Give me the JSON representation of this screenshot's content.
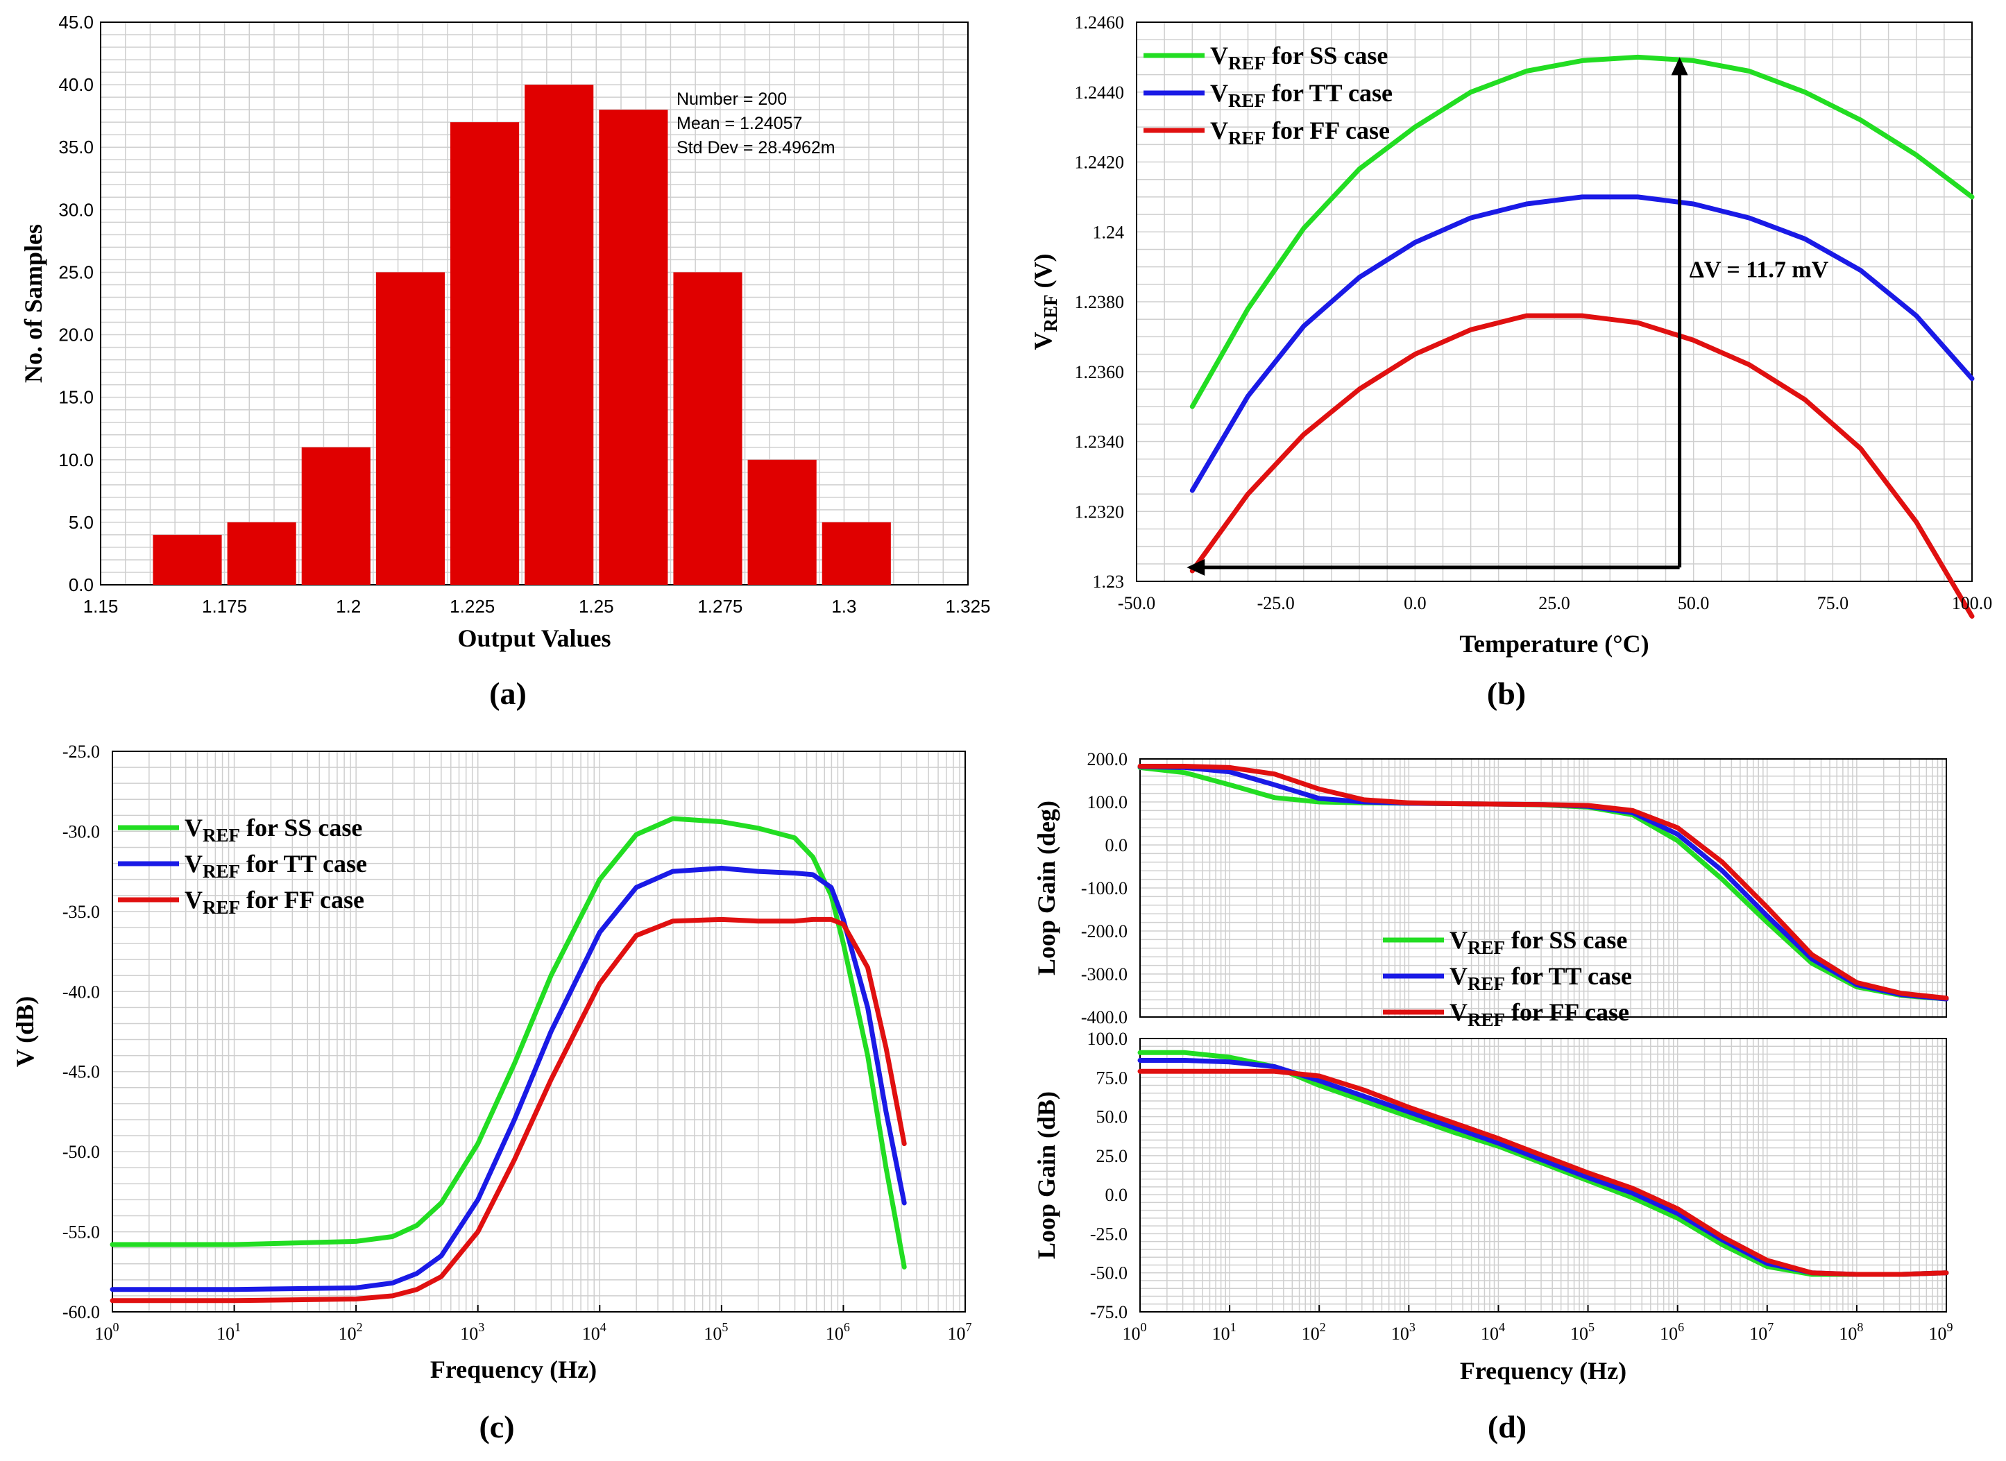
{
  "colors": {
    "ss": "#22dd22",
    "tt": "#1a1ae6",
    "ff": "#e01010",
    "bar": "#e00000",
    "grid": "#cfcfcf"
  },
  "chart_data": [
    {
      "id": "a",
      "type": "bar",
      "panel_label": "(a)",
      "xlabel": "Output Values",
      "ylabel": "No. of Samples",
      "xlim": [
        1.15,
        1.325
      ],
      "ylim": [
        0,
        45
      ],
      "x_ticks": [
        "1.15",
        "1.175",
        "1.2",
        "1.225",
        "1.25",
        "1.275",
        "1.3",
        "1.325"
      ],
      "y_ticks": [
        "0.0",
        "5.0",
        "10.0",
        "15.0",
        "20.0",
        "25.0",
        "30.0",
        "35.0",
        "40.0",
        "45.0"
      ],
      "bin_centers": [
        1.1675,
        1.1825,
        1.1975,
        1.2125,
        1.2275,
        1.2425,
        1.2575,
        1.2725,
        1.2875,
        1.3025
      ],
      "bin_width": 0.015,
      "values": [
        4,
        5,
        11,
        25,
        37,
        40,
        38,
        25,
        10,
        5
      ],
      "stats": [
        "Number = 200",
        "Mean = 1.24057",
        "Std Dev = 28.4962m"
      ]
    },
    {
      "id": "b",
      "type": "line",
      "panel_label": "(b)",
      "xlabel": "Temperature (°C)",
      "ylabel_main": "V",
      "ylabel_sub": "REF",
      "ylabel_unit": " (V)",
      "xlim": [
        -50,
        100
      ],
      "ylim": [
        1.23,
        1.246
      ],
      "x_ticks": [
        "-50.0",
        "-25.0",
        "0.0",
        "25.0",
        "50.0",
        "75.0",
        "100.0"
      ],
      "y_ticks": [
        "1.23",
        "1.2320",
        "1.2340",
        "1.2360",
        "1.2380",
        "1.24",
        "1.2420",
        "1.2440",
        "1.2460"
      ],
      "x": [
        -40,
        -30,
        -20,
        -10,
        0,
        10,
        20,
        30,
        40,
        50,
        60,
        70,
        80,
        90,
        100
      ],
      "series": [
        {
          "name": "SS",
          "label_main": "V",
          "label_sub": "REF",
          "label_rest": " for SS case",
          "values": [
            1.235,
            1.2378,
            1.2401,
            1.2418,
            1.243,
            1.244,
            1.2446,
            1.2449,
            1.245,
            1.2449,
            1.2446,
            1.244,
            1.2432,
            1.2422,
            1.241
          ]
        },
        {
          "name": "TT",
          "label_main": "V",
          "label_sub": "REF",
          "label_rest": " for TT case",
          "values": [
            1.2326,
            1.2353,
            1.2373,
            1.2387,
            1.2397,
            1.2404,
            1.2408,
            1.241,
            1.241,
            1.2408,
            1.2404,
            1.2398,
            1.2389,
            1.2376,
            1.2358
          ]
        },
        {
          "name": "FF",
          "label_main": "V",
          "label_sub": "REF",
          "label_rest": " for FF case",
          "values": [
            1.2303,
            1.2325,
            1.2342,
            1.2355,
            1.2365,
            1.2372,
            1.2376,
            1.2376,
            1.2374,
            1.2369,
            1.2362,
            1.2352,
            1.2338,
            1.2317,
            1.229
          ]
        }
      ],
      "annotation": "ΔV = 11.7 mV",
      "arrow": {
        "x": 47.5,
        "y_min": 1.2304,
        "y_max": 1.245,
        "x_left": -41
      }
    },
    {
      "id": "c",
      "type": "line",
      "panel_label": "(c)",
      "xlabel": "Frequency (Hz)",
      "ylabel": "V (dB)",
      "x_scale": "log",
      "xlim_exp": [
        0,
        7
      ],
      "ylim": [
        -60,
        -25
      ],
      "x_tick_exps": [
        "0",
        "1",
        "2",
        "3",
        "4",
        "5",
        "6",
        "7"
      ],
      "y_ticks": [
        "-60.0",
        "-55.0",
        "-50.0",
        "-45.0",
        "-40.0",
        "-35.0",
        "-30.0",
        "-25.0"
      ],
      "x_exp": [
        0,
        1,
        2,
        2.3,
        2.5,
        2.7,
        3,
        3.3,
        3.6,
        4,
        4.3,
        4.6,
        5,
        5.3,
        5.6,
        5.75,
        5.9,
        6,
        6.2,
        6.35,
        6.5
      ],
      "series": [
        {
          "name": "SS",
          "label_main": "V",
          "label_sub": "REF",
          "label_rest": " for SS case",
          "values": [
            -55.8,
            -55.8,
            -55.6,
            -55.3,
            -54.6,
            -53.2,
            -49.5,
            -44.5,
            -39.0,
            -33.0,
            -30.2,
            -29.2,
            -29.4,
            -29.8,
            -30.4,
            -31.6,
            -34.0,
            -37.0,
            -44.0,
            -51.0,
            -57.2
          ]
        },
        {
          "name": "TT",
          "label_main": "V",
          "label_sub": "REF",
          "label_rest": " for TT case",
          "values": [
            -58.6,
            -58.6,
            -58.5,
            -58.2,
            -57.6,
            -56.5,
            -53.0,
            -48.0,
            -42.5,
            -36.3,
            -33.5,
            -32.5,
            -32.3,
            -32.5,
            -32.6,
            -32.7,
            -33.5,
            -35.5,
            -41.0,
            -47.5,
            -53.2
          ]
        },
        {
          "name": "FF",
          "label_main": "V",
          "label_sub": "REF",
          "label_rest": " for FF case",
          "values": [
            -59.3,
            -59.3,
            -59.2,
            -59.0,
            -58.6,
            -57.8,
            -55.0,
            -50.5,
            -45.5,
            -39.5,
            -36.5,
            -35.6,
            -35.5,
            -35.6,
            -35.6,
            -35.5,
            -35.5,
            -35.8,
            -38.5,
            -43.5,
            -49.5
          ]
        }
      ]
    },
    {
      "id": "d",
      "type": "line",
      "panel_label": "(d)",
      "xlabel": "Frequency (Hz)",
      "x_scale": "log",
      "xlim_exp": [
        0,
        9
      ],
      "x_tick_exps": [
        "0",
        "1",
        "2",
        "3",
        "4",
        "5",
        "6",
        "7",
        "8",
        "9"
      ],
      "x_exp": [
        0,
        0.5,
        1,
        1.5,
        2,
        2.5,
        3,
        3.5,
        4,
        4.5,
        5,
        5.5,
        6,
        6.5,
        7,
        7.5,
        8,
        8.5,
        9
      ],
      "phase": {
        "ylabel": "Loop Gain (deg)",
        "ylim": [
          -400,
          200
        ],
        "y_ticks": [
          "-400.0",
          "-300.0",
          "-200.0",
          "-100.0",
          "0.0",
          "100.0",
          "200.0"
        ],
        "series": [
          {
            "name": "SS",
            "values": [
              180,
              168,
              140,
              110,
              100,
              98,
              97,
              96,
              95,
              93,
              88,
              70,
              10,
              -80,
              -180,
              -275,
              -330,
              -350,
              -358
            ]
          },
          {
            "name": "TT",
            "values": [
              182,
              180,
              170,
              140,
              108,
              100,
              97,
              96,
              95,
              94,
              90,
              75,
              25,
              -60,
              -165,
              -265,
              -325,
              -348,
              -358
            ]
          },
          {
            "name": "FF",
            "values": [
              183,
              183,
              180,
              165,
              130,
              105,
              98,
              96,
              95,
              94,
              92,
              80,
              40,
              -40,
              -145,
              -255,
              -320,
              -345,
              -356
            ]
          }
        ]
      },
      "gain": {
        "ylabel": "Loop Gain (dB)",
        "ylim": [
          -75,
          100
        ],
        "y_ticks": [
          "-75.0",
          "-50.0",
          "-25.0",
          "0.0",
          "25.0",
          "50.0",
          "75.0",
          "100.0"
        ],
        "series": [
          {
            "name": "SS",
            "values": [
              91,
              91,
              88,
              82,
              70,
              60,
              50,
              40,
              31,
              20,
              9,
              -2,
              -15,
              -32,
              -46,
              -51,
              -51,
              -51,
              -50
            ]
          },
          {
            "name": "TT",
            "values": [
              86,
              86,
              85,
              82,
              73,
              63,
              53,
              43,
              33,
              22,
              11,
              1,
              -12,
              -29,
              -44,
              -50,
              -51,
              -51,
              -50
            ]
          },
          {
            "name": "FF",
            "values": [
              79,
              79,
              79,
              79,
              76,
              67,
              56,
              46,
              36,
              25,
              14,
              4,
              -9,
              -27,
              -42,
              -50,
              -51,
              -51,
              -50
            ]
          }
        ]
      },
      "legend": [
        {
          "name": "SS",
          "label_main": "V",
          "label_sub": "REF",
          "label_rest": " for SS case"
        },
        {
          "name": "TT",
          "label_main": "V",
          "label_sub": "REF",
          "label_rest": " for TT case"
        },
        {
          "name": "FF",
          "label_main": "V",
          "label_sub": "REF",
          "label_rest": " for FF case"
        }
      ]
    }
  ]
}
